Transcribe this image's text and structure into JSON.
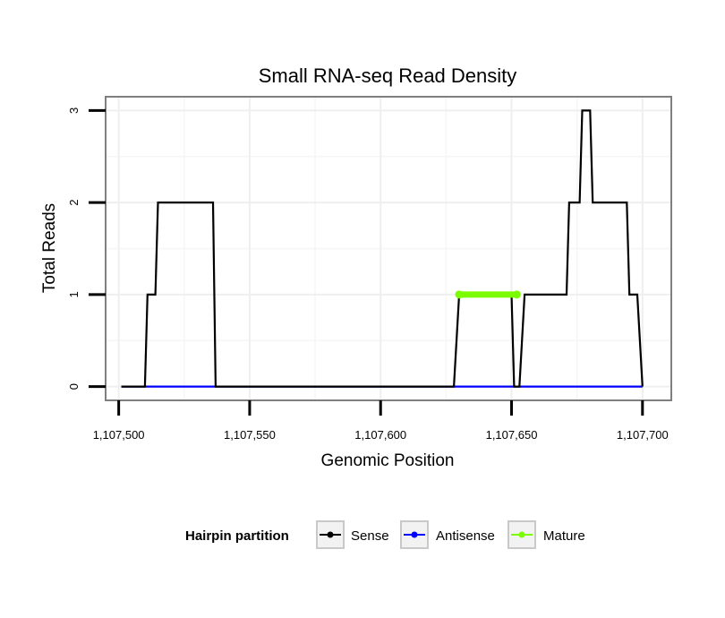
{
  "chart_data": {
    "type": "line",
    "title": "Small RNA-seq Read Density",
    "xlabel": "Genomic Position",
    "ylabel": "Total Reads",
    "xlim": [
      1107495,
      1107711
    ],
    "ylim": [
      -0.15,
      3.15
    ],
    "x_ticks": [
      1107500,
      1107550,
      1107600,
      1107650,
      1107700
    ],
    "x_tick_labels": [
      "1,107,500",
      "1,107,550",
      "1,107,600",
      "1,107,650",
      "1,107,700"
    ],
    "y_ticks": [
      0,
      1,
      2,
      3
    ],
    "y_tick_labels": [
      "0",
      "1",
      "2",
      "3"
    ],
    "grid": true,
    "legend": {
      "title": "Hairpin partition",
      "position": "bottom",
      "entries": [
        "Sense",
        "Antisense",
        "Mature"
      ]
    },
    "series": [
      {
        "name": "Sense",
        "color": "#000000",
        "step": true,
        "x": [
          1107501,
          1107510,
          1107511,
          1107514,
          1107515,
          1107536,
          1107537,
          1107628,
          1107630,
          1107650,
          1107651,
          1107653,
          1107655,
          1107671,
          1107672,
          1107676,
          1107677,
          1107680,
          1107681,
          1107694,
          1107695,
          1107698,
          1107700
        ],
        "values": [
          0,
          0,
          1,
          1,
          2,
          2,
          0,
          0,
          1,
          1,
          0,
          0,
          1,
          1,
          2,
          2,
          3,
          3,
          2,
          2,
          1,
          1,
          0
        ]
      },
      {
        "name": "Antisense",
        "color": "#0000ff",
        "step": true,
        "x": [
          1107501,
          1107700
        ],
        "values": [
          0,
          0
        ]
      },
      {
        "name": "Mature",
        "color": "#7cfc00",
        "step": false,
        "x": [
          1107630,
          1107652
        ],
        "values": [
          1,
          1
        ]
      }
    ]
  }
}
